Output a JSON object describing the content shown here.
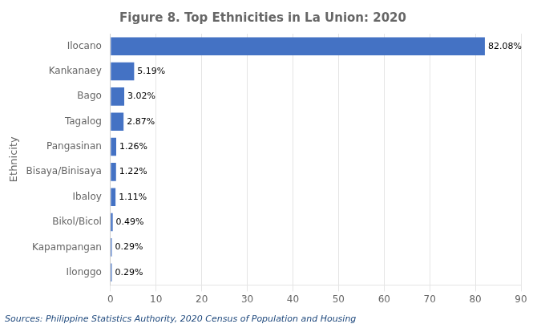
{
  "chart_data": {
    "type": "bar",
    "orientation": "horizontal",
    "title": "Figure 8. Top Ethnicities in La Union: 2020",
    "categories": [
      "Ilocano",
      "Kankanaey",
      "Bago",
      "Tagalog",
      "Pangasinan",
      "Bisaya/Binisaya",
      "Ibaloy",
      "Bikol/Bicol",
      "Kapampangan",
      "Ilonggo"
    ],
    "values": [
      82.08,
      5.19,
      3.02,
      2.87,
      1.26,
      1.22,
      1.11,
      0.49,
      0.29,
      0.29
    ],
    "value_labels": [
      "82.08%",
      "5.19%",
      "3.02%",
      "2.87%",
      "1.26%",
      "1.22%",
      "1.11%",
      "0.49%",
      "0.29%",
      "0.29%"
    ],
    "data_labels": true,
    "color": "#4472C4",
    "ylabel": "Ethnicity",
    "xlim": [
      0,
      90
    ],
    "xticks": [
      0,
      10,
      20,
      30,
      40,
      50,
      60,
      70,
      80,
      90
    ],
    "grid": true,
    "source": "Sources: Philippine Statistics Authority, 2020 Census of Population and Housing"
  }
}
